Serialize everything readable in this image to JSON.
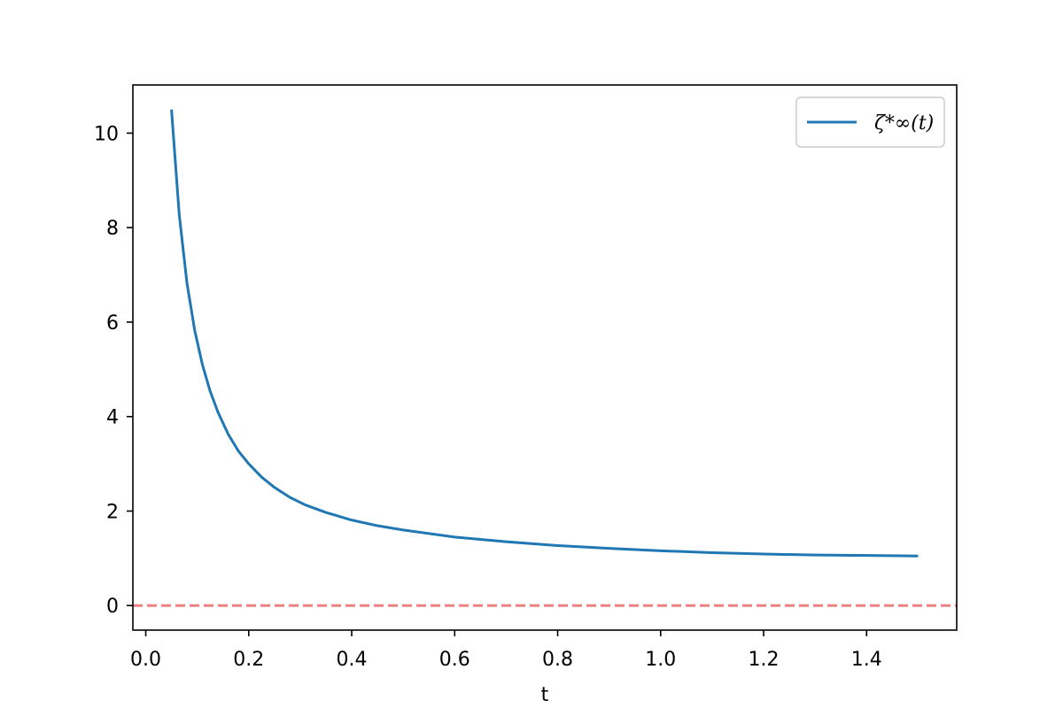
{
  "chart_data": {
    "type": "line",
    "title": "",
    "xlabel": "t",
    "ylabel": "",
    "xlim": [
      -0.025,
      1.575
    ],
    "ylim": [
      -0.52,
      11.02
    ],
    "xticks": [
      0.0,
      0.2,
      0.4,
      0.6,
      0.8,
      1.0,
      1.2,
      1.4
    ],
    "xtick_labels": [
      "0.0",
      "0.2",
      "0.4",
      "0.6",
      "0.8",
      "1.0",
      "1.2",
      "1.4"
    ],
    "yticks": [
      0,
      2,
      4,
      6,
      8,
      10
    ],
    "ytick_labels": [
      "0",
      "2",
      "4",
      "6",
      "8",
      "10"
    ],
    "grid": false,
    "legend_position": "top-right",
    "series": [
      {
        "name": "ζ*∞(t)",
        "color": "#1f77b4",
        "style": "solid",
        "x": [
          0.05,
          0.065,
          0.08,
          0.095,
          0.11,
          0.125,
          0.14,
          0.16,
          0.18,
          0.2,
          0.225,
          0.25,
          0.28,
          0.31,
          0.35,
          0.4,
          0.45,
          0.5,
          0.6,
          0.7,
          0.8,
          0.9,
          1.0,
          1.1,
          1.2,
          1.3,
          1.4,
          1.5
        ],
        "y": [
          10.5,
          8.28,
          6.83,
          5.83,
          5.1,
          4.54,
          4.1,
          3.63,
          3.27,
          3.0,
          2.72,
          2.5,
          2.29,
          2.13,
          1.97,
          1.81,
          1.69,
          1.6,
          1.45,
          1.35,
          1.27,
          1.21,
          1.16,
          1.12,
          1.09,
          1.07,
          1.06,
          1.05
        ]
      }
    ],
    "reference_lines": [
      {
        "y": 0,
        "color": "#f08080",
        "style": "dashed"
      }
    ]
  }
}
